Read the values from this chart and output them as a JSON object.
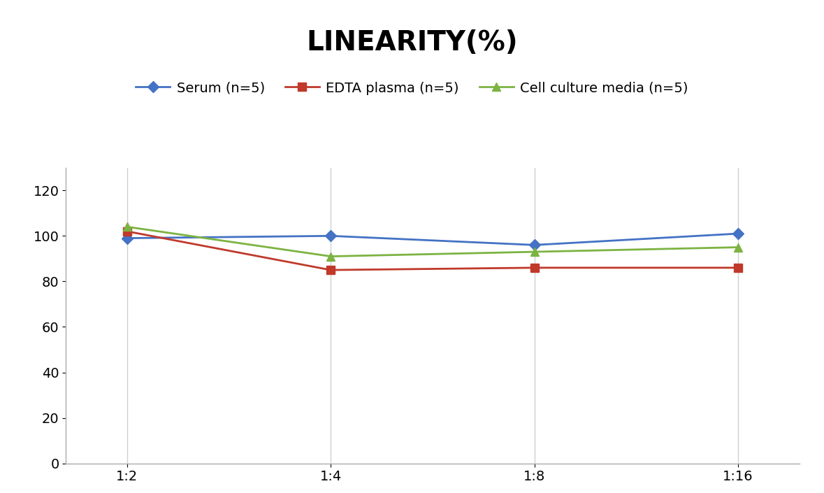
{
  "title": "LINEARITY(%)",
  "title_fontsize": 28,
  "title_fontweight": "bold",
  "x_labels": [
    "1:2",
    "1:4",
    "1:8",
    "1:16"
  ],
  "x_positions": [
    0,
    1,
    2,
    3
  ],
  "series": [
    {
      "label": "Serum (n=5)",
      "values": [
        99,
        100,
        96,
        101
      ],
      "color": "#4472C4",
      "marker": "D",
      "markersize": 8,
      "linewidth": 2
    },
    {
      "label": "EDTA plasma (n=5)",
      "values": [
        102,
        85,
        86,
        86
      ],
      "color": "#C0392B",
      "marker": "s",
      "markersize": 8,
      "linewidth": 2
    },
    {
      "label": "Cell culture media (n=5)",
      "values": [
        104,
        91,
        93,
        95
      ],
      "color": "#7CB342",
      "marker": "^",
      "markersize": 9,
      "linewidth": 2
    }
  ],
  "ylim": [
    0,
    130
  ],
  "yticks": [
    0,
    20,
    40,
    60,
    80,
    100,
    120
  ],
  "ylabel": "",
  "xlabel": "",
  "grid_color": "#D0D0D0",
  "background_color": "#FFFFFF",
  "legend_fontsize": 14,
  "tick_fontsize": 14,
  "axis_color": "#AAAAAA"
}
